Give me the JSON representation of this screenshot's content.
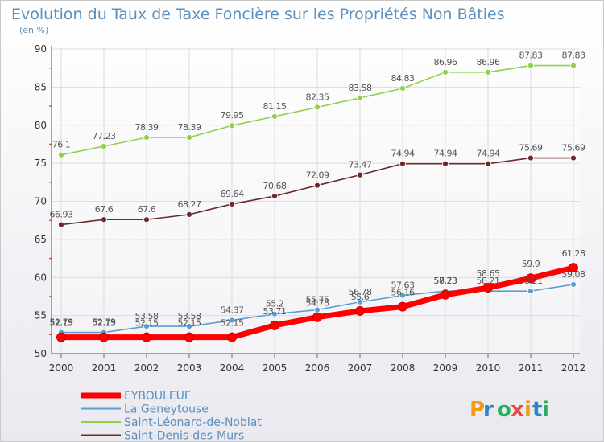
{
  "chart_data": {
    "type": "line",
    "title": "Evolution du Taux de Taxe Foncière sur les Propriétés Non Bâties",
    "ylabel": "(en %)",
    "ylim": [
      50,
      90
    ],
    "yticks": [
      50,
      55,
      60,
      65,
      70,
      75,
      80,
      85,
      90
    ],
    "x": [
      "2000",
      "2001",
      "2002",
      "2003",
      "2004",
      "2005",
      "2006",
      "2007",
      "2008",
      "2009",
      "2010",
      "2011",
      "2012"
    ],
    "series": [
      {
        "name": "EYBOULEUF",
        "color": "#ff0000",
        "values": [
          52.15,
          52.15,
          52.15,
          52.15,
          52.15,
          53.71,
          54.78,
          55.6,
          56.16,
          57.73,
          58.65,
          59.9,
          61.28
        ],
        "labels": [
          "52.15",
          "52.15",
          "52.15",
          "52.15",
          "52.15",
          "53.71",
          "54.78",
          "55.6",
          "56.16",
          "57.73",
          "58.65",
          "59.9",
          "61.28"
        ]
      },
      {
        "name": "La Geneytouse",
        "color": "#5a9fd4",
        "values": [
          52.79,
          52.79,
          53.58,
          53.58,
          54.37,
          55.2,
          55.75,
          56.78,
          57.63,
          58.23,
          58.21,
          58.21,
          59.08
        ],
        "labels": [
          "52.79",
          "52.79",
          "53.58",
          "53.58",
          "54.37",
          "55.2",
          "55.75",
          "56.78",
          "57.63",
          "58.23",
          "58.21",
          "58.21",
          "59.08"
        ]
      },
      {
        "name": "Saint-Léonard-de-Noblat",
        "color": "#8ed04a",
        "values": [
          76.1,
          77.23,
          78.39,
          78.39,
          79.95,
          81.15,
          82.35,
          83.58,
          84.83,
          86.96,
          86.96,
          87.83,
          87.83
        ],
        "labels": [
          "76.1",
          "77.23",
          "78.39",
          "78.39",
          "79.95",
          "81.15",
          "82.35",
          "83.58",
          "84.83",
          "86.96",
          "86.96",
          "87.83",
          "87.83"
        ]
      },
      {
        "name": "Saint-Denis-des-Murs",
        "color": "#6b2a2a",
        "values": [
          66.93,
          67.6,
          67.6,
          68.27,
          69.64,
          70.68,
          72.09,
          73.47,
          74.94,
          74.94,
          74.94,
          75.69,
          75.69
        ],
        "labels": [
          "66.93",
          "67.6",
          "67.6",
          "68.27",
          "69.64",
          "70.68",
          "72.09",
          "73.47",
          "74.94",
          "74.94",
          "74.94",
          "75.69",
          "75.69"
        ]
      }
    ],
    "legend_position": "bottom-left",
    "brand": "Proxiti",
    "brand_letters": [
      {
        "ch": "P",
        "color": "#f39c12"
      },
      {
        "ch": "r",
        "color": "#2e86c1"
      },
      {
        "ch": "o",
        "color": "#27ae60"
      },
      {
        "ch": "x",
        "color": "#e74c3c"
      },
      {
        "ch": "i",
        "color": "#f39c12"
      },
      {
        "ch": "t",
        "color": "#2e86c1"
      },
      {
        "ch": "i",
        "color": "#27ae60"
      }
    ]
  }
}
